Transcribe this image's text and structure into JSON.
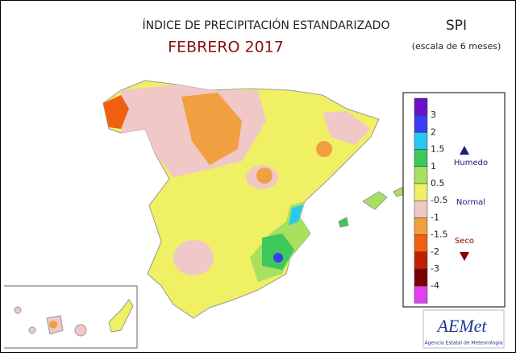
{
  "header": {
    "title": "ÍNDICE DE PRECIPITACIÓN ESTANDARIZADO",
    "subtitle": "FEBRERO 2017",
    "index": "SPI",
    "scale_note": "(escala de 6 meses)"
  },
  "legend": {
    "labels": [
      "3",
      "2",
      "1.5",
      "1",
      "0.5",
      "-0.5",
      "-1",
      "-1.5",
      "-2",
      "-3",
      "-4"
    ],
    "colors": [
      "#6b10c8",
      "#3c3cf0",
      "#28c8f0",
      "#3cc85a",
      "#a8e060",
      "#f0f064",
      "#f0c8c8",
      "#f0a040",
      "#f06010",
      "#c02000",
      "#7a0000",
      "#e040f0"
    ],
    "wet": "Humedo",
    "normal": "Normal",
    "dry": "Seco"
  },
  "logo": {
    "name": "AEMet",
    "agency": "Agencia Estatal de Meteorología"
  }
}
